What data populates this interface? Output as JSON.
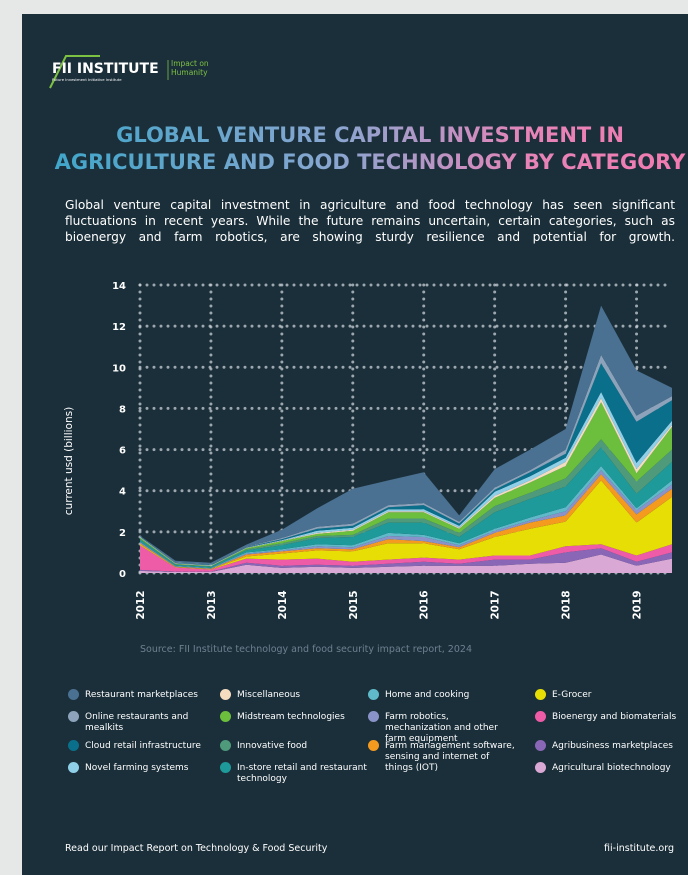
{
  "logo": {
    "name": "FII INSTITUTE",
    "subtitle": "Future Investment Initiative Institute",
    "tagline": "Impact on Humanity"
  },
  "chart_data": {
    "type": "stacked_area",
    "title": "GLOBAL VENTURE CAPITAL INVESTMENT IN AGRICULTURE AND FOOD TECHNOLOGY BY CATEGORY",
    "subtitle": "Global venture capital investment in agriculture and food technology has seen significant fluctuations in recent years. While the future remains uncertain, certain categories, such as bioenergy and farm robotics, are showing sturdy resilience and potential for growth.",
    "y_label": "current usd (billions)",
    "source": "Source: FII Institute technology and food security impact report, 2024",
    "x": [
      2012,
      2012.5,
      2013,
      2013.5,
      2014,
      2014.5,
      2015,
      2015.5,
      2016,
      2016.5,
      2017,
      2017.5,
      2018,
      2018.5,
      2019,
      2019.5
    ],
    "xlim": [
      2012,
      2019.5
    ],
    "xticks": [
      2012,
      2013,
      2014,
      2015,
      2016,
      2017,
      2018,
      2019
    ],
    "ylim": [
      0,
      14
    ],
    "yticks": [
      0,
      2,
      4,
      6,
      8,
      10,
      12,
      14
    ],
    "grid": true,
    "series": [
      {
        "name": "Agricultural biotechnology",
        "color": "#d9a8d4",
        "values": [
          0.1,
          0.05,
          0.05,
          0.4,
          0.25,
          0.3,
          0.25,
          0.3,
          0.35,
          0.35,
          0.35,
          0.45,
          0.5,
          0.9,
          0.35,
          0.7
        ]
      },
      {
        "name": "Agribusiness marketplaces",
        "color": "#8a66b7",
        "values": [
          0.05,
          0.02,
          0.02,
          0.1,
          0.1,
          0.1,
          0.1,
          0.15,
          0.2,
          0.1,
          0.3,
          0.2,
          0.5,
          0.3,
          0.2,
          0.3
        ]
      },
      {
        "name": "Bioenergy and biomaterials",
        "color": "#ee5ca8",
        "values": [
          1.2,
          0.2,
          0.1,
          0.2,
          0.3,
          0.3,
          0.2,
          0.2,
          0.2,
          0.2,
          0.2,
          0.2,
          0.3,
          0.2,
          0.3,
          0.4
        ]
      },
      {
        "name": "E-Grocer",
        "color": "#e6de05",
        "values": [
          0.05,
          0.02,
          0.02,
          0.1,
          0.3,
          0.4,
          0.5,
          0.8,
          0.7,
          0.5,
          0.9,
          1.3,
          1.2,
          3.1,
          1.6,
          2.3
        ]
      },
      {
        "name": "Farm management software, sensing and internet of things (IOT)",
        "color": "#f39a1f",
        "values": [
          0.05,
          0.02,
          0.02,
          0.1,
          0.1,
          0.1,
          0.1,
          0.2,
          0.1,
          0.1,
          0.2,
          0.3,
          0.3,
          0.3,
          0.4,
          0.4
        ]
      },
      {
        "name": "Farm robotics, mechanization and other farm equipment",
        "color": "#8a93c9",
        "values": [
          0.05,
          0.02,
          0.02,
          0.05,
          0.05,
          0.1,
          0.1,
          0.15,
          0.2,
          0.1,
          0.1,
          0.1,
          0.2,
          0.2,
          0.2,
          0.2
        ]
      },
      {
        "name": "Home and cooking",
        "color": "#5fb9c9",
        "values": [
          0.02,
          0.02,
          0.02,
          0.05,
          0.05,
          0.1,
          0.1,
          0.15,
          0.1,
          0.1,
          0.1,
          0.15,
          0.2,
          0.2,
          0.1,
          0.2
        ]
      },
      {
        "name": "In-store retail and restaurant technology",
        "color": "#1e9a9a",
        "values": [
          0.1,
          0.05,
          0.05,
          0.1,
          0.2,
          0.3,
          0.4,
          0.5,
          0.6,
          0.3,
          0.8,
          0.9,
          1.0,
          0.9,
          0.7,
          0.9
        ]
      },
      {
        "name": "Innovative food",
        "color": "#4e9a7a",
        "values": [
          0.05,
          0.02,
          0.02,
          0.05,
          0.1,
          0.1,
          0.1,
          0.2,
          0.2,
          0.2,
          0.3,
          0.3,
          0.4,
          0.4,
          0.6,
          0.6
        ]
      },
      {
        "name": "Midstream technologies",
        "color": "#6bbf3c",
        "values": [
          0.05,
          0.02,
          0.02,
          0.05,
          0.1,
          0.1,
          0.2,
          0.3,
          0.3,
          0.2,
          0.4,
          0.5,
          0.6,
          1.8,
          0.4,
          1.1
        ]
      },
      {
        "name": "Miscellaneous",
        "color": "#f3dcc0",
        "values": [
          0.02,
          0.02,
          0.02,
          0.02,
          0.02,
          0.05,
          0.05,
          0.05,
          0.05,
          0.05,
          0.1,
          0.1,
          0.2,
          0.2,
          0.2,
          0.1
        ]
      },
      {
        "name": "Novel farming systems",
        "color": "#8fd0e8",
        "values": [
          0.02,
          0.02,
          0.02,
          0.02,
          0.03,
          0.1,
          0.1,
          0.1,
          0.1,
          0.1,
          0.2,
          0.2,
          0.2,
          0.3,
          0.3,
          0.2
        ]
      },
      {
        "name": "Cloud retail infrastructure",
        "color": "#0a6f8a",
        "values": [
          0.02,
          0.02,
          0.02,
          0.02,
          0.05,
          0.1,
          0.1,
          0.1,
          0.2,
          0.1,
          0.1,
          0.2,
          0.2,
          1.4,
          2.0,
          1.0
        ]
      },
      {
        "name": "Online restaurants and mealkits",
        "color": "#8ca3bb",
        "values": [
          0.01,
          0.02,
          0.02,
          0.02,
          0.05,
          0.1,
          0.1,
          0.1,
          0.1,
          0.1,
          0.1,
          0.1,
          0.2,
          0.4,
          0.3,
          0.2
        ]
      },
      {
        "name": "Restaurant marketplaces",
        "color": "#4a7191",
        "values": [
          0.02,
          0.08,
          0.08,
          0.1,
          0.4,
          0.9,
          1.7,
          1.2,
          1.5,
          0.3,
          0.9,
          1.0,
          1.0,
          2.4,
          2.2,
          0.4
        ]
      }
    ]
  },
  "footer": {
    "left": "Read our Impact Report on Technology & Food Security",
    "right": "fii-institute.org"
  }
}
